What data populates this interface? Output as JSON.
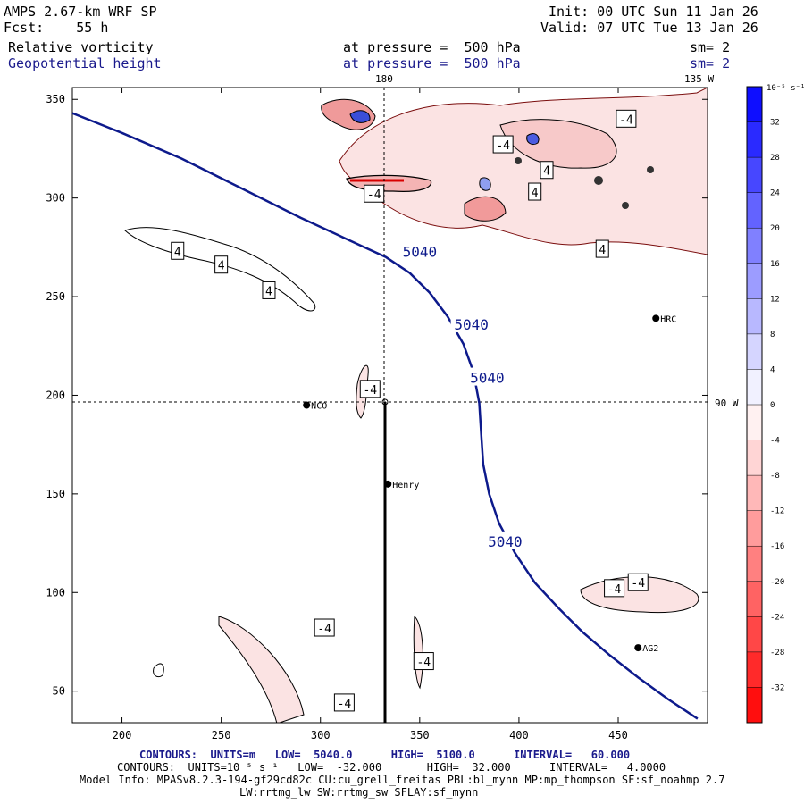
{
  "header": {
    "model": "AMPS 2.67-km WRF SP",
    "fcst": "Fcst:    55 h",
    "init": "Init: 00 UTC Sun 11 Jan 26",
    "valid": "Valid: 07 UTC Tue 13 Jan 26",
    "field1_name": "Relative vorticity",
    "field1_level": "at pressure =  500 hPa",
    "field1_sm": "sm= 2",
    "field2_name": "Geopotential height",
    "field2_level": "at pressure =  500 hPa",
    "field2_sm": "sm= 2"
  },
  "map": {
    "top_labels": [
      "180",
      "135 W"
    ],
    "right_label": "90 W",
    "stations": [
      {
        "name": "NCO",
        "x": 293,
        "y": 195
      },
      {
        "name": "Henry",
        "x": 334,
        "y": 155
      },
      {
        "name": "HRC",
        "x": 469,
        "y": 239
      },
      {
        "name": "AG2",
        "x": 460,
        "y": 72
      }
    ]
  },
  "chart_data": {
    "type": "contour",
    "x_ticks": [
      200,
      250,
      300,
      350,
      400,
      450
    ],
    "y_ticks": [
      50,
      100,
      150,
      200,
      250,
      300,
      350
    ],
    "xlim": [
      175,
      495
    ],
    "ylim": [
      34,
      356
    ],
    "height_contour_label": "5040",
    "height_contour_path": [
      [
        175,
        343
      ],
      [
        200,
        333
      ],
      [
        230,
        320
      ],
      [
        260,
        305
      ],
      [
        290,
        290
      ],
      [
        320,
        276
      ],
      [
        333,
        270
      ],
      [
        345,
        262
      ],
      [
        355,
        252
      ],
      [
        364,
        240
      ],
      [
        372,
        226
      ],
      [
        377,
        212
      ],
      [
        380,
        196
      ],
      [
        381,
        180
      ],
      [
        382,
        165
      ],
      [
        385,
        150
      ],
      [
        390,
        135
      ],
      [
        398,
        120
      ],
      [
        408,
        105
      ],
      [
        420,
        92
      ],
      [
        432,
        80
      ],
      [
        446,
        68
      ],
      [
        460,
        57
      ],
      [
        475,
        46
      ],
      [
        490,
        36
      ]
    ],
    "height_contour_label_points": [
      [
        350,
        273
      ],
      [
        376,
        236
      ],
      [
        384,
        209
      ],
      [
        393,
        126
      ]
    ],
    "vorticity_labels": [
      {
        "text": "-4",
        "x": 325,
        "y": 203
      },
      {
        "text": "-4",
        "x": 352,
        "y": 65
      },
      {
        "text": "-4",
        "x": 302,
        "y": 82
      },
      {
        "text": "-4",
        "x": 312,
        "y": 44
      },
      {
        "text": "-4",
        "x": 448,
        "y": 102
      },
      {
        "text": "-4",
        "x": 460,
        "y": 105
      },
      {
        "text": "4",
        "x": 228,
        "y": 273
      },
      {
        "text": "4",
        "x": 250,
        "y": 266
      },
      {
        "text": "4",
        "x": 274,
        "y": 253
      },
      {
        "text": "4",
        "x": 442,
        "y": 274
      },
      {
        "text": "-4",
        "x": 327,
        "y": 302
      },
      {
        "text": "-4",
        "x": 392,
        "y": 327
      },
      {
        "text": "4",
        "x": 414,
        "y": 314
      },
      {
        "text": "-4",
        "x": 454,
        "y": 340
      },
      {
        "text": "4",
        "x": 408,
        "y": 303
      }
    ],
    "colorbar": {
      "units": "10⁻⁵ s⁻¹",
      "ticks": [
        32,
        28,
        24,
        20,
        16,
        12,
        8,
        4,
        0,
        -4,
        -8,
        -12,
        -16,
        -20,
        -24,
        -28,
        -32
      ]
    }
  },
  "footer": {
    "line1": "CONTOURS:  UNITS=m   LOW=  5040.0      HIGH=  5100.0      INTERVAL=   60.000",
    "line2": "CONTOURS:  UNITS=10⁻⁵ s⁻¹   LOW=  -32.000       HIGH=  32.000      INTERVAL=   4.0000",
    "line3": "Model Info: MPASv8.2.3-194-gf29cd82c CU:cu_grell_freitas PBL:bl_mynn MP:mp_thompson SF:sf_noahmp 2.7",
    "line4": "LW:rrtmg_lw SW:rrtmg_sw SFLAY:sf_mynn"
  },
  "colors": {
    "height_contour": "#0d1a8c",
    "neg_fill": "#fbe3e3",
    "pos_fill": "#dfe4f8"
  }
}
